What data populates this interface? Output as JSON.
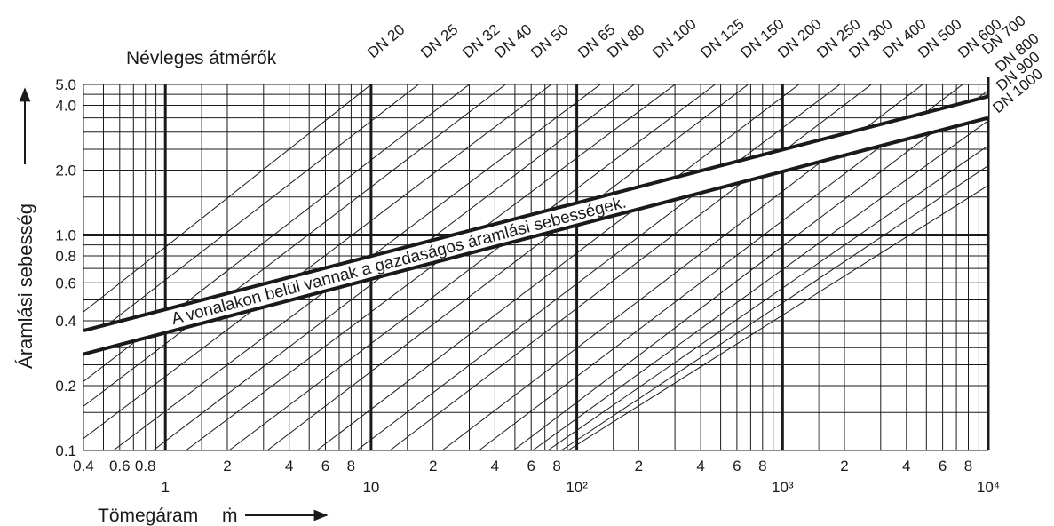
{
  "chart_data": {
    "type": "line",
    "title": "Névleges átmérők",
    "xlabel": "Tömegáram",
    "xlabel_symbol": "ṁ",
    "ylabel": "Áramlási sebesség",
    "x_scale": "log",
    "y_scale": "log",
    "xlim": [
      0.4,
      10000
    ],
    "ylim": [
      0.1,
      5.0
    ],
    "grid": true,
    "x_tick_labels": [
      {
        "value": 0.4,
        "label": "0.4"
      },
      {
        "value": 0.6,
        "label": "0.6"
      },
      {
        "value": 0.8,
        "label": "0.8"
      },
      {
        "value": 1,
        "label": "1"
      },
      {
        "value": 2,
        "label": "2"
      },
      {
        "value": 4,
        "label": "4"
      },
      {
        "value": 6,
        "label": "6"
      },
      {
        "value": 8,
        "label": "8"
      },
      {
        "value": 10,
        "label": "10"
      },
      {
        "value": 20,
        "label": "2"
      },
      {
        "value": 40,
        "label": "4"
      },
      {
        "value": 60,
        "label": "6"
      },
      {
        "value": 80,
        "label": "8"
      },
      {
        "value": 100,
        "label": "10²"
      },
      {
        "value": 200,
        "label": "2"
      },
      {
        "value": 400,
        "label": "4"
      },
      {
        "value": 600,
        "label": "6"
      },
      {
        "value": 800,
        "label": "8"
      },
      {
        "value": 1000,
        "label": "10³"
      },
      {
        "value": 2000,
        "label": "2"
      },
      {
        "value": 4000,
        "label": "4"
      },
      {
        "value": 6000,
        "label": "6"
      },
      {
        "value": 8000,
        "label": "8"
      },
      {
        "value": 10000,
        "label": "10⁴"
      }
    ],
    "y_tick_labels": [
      {
        "value": 0.1,
        "label": "0.1"
      },
      {
        "value": 0.2,
        "label": "0.2"
      },
      {
        "value": 0.4,
        "label": "0.4"
      },
      {
        "value": 0.6,
        "label": "0.6"
      },
      {
        "value": 0.8,
        "label": "0.8"
      },
      {
        "value": 1.0,
        "label": "1.0"
      },
      {
        "value": 2.0,
        "label": "2.0"
      },
      {
        "value": 4.0,
        "label": "4.0"
      },
      {
        "value": 5.0,
        "label": "5.0"
      }
    ],
    "series": [
      {
        "name": "DN 20",
        "x": [
          0.4,
          10
        ],
        "y": [
          0.44,
          5.0
        ]
      },
      {
        "name": "DN 25",
        "x": [
          0.63,
          17
        ],
        "y": [
          0.44,
          5.0
        ]
      },
      {
        "name": "DN 32",
        "x": [
          1.1,
          30
        ],
        "y": [
          0.44,
          5.0
        ]
      },
      {
        "name": "DN 40",
        "x": [
          1.6,
          45
        ],
        "y": [
          0.44,
          5.0
        ]
      },
      {
        "name": "DN 50",
        "x": [
          2.6,
          75
        ],
        "y": [
          0.44,
          5.0
        ]
      },
      {
        "name": "DN 65",
        "x": [
          4.4,
          130
        ],
        "y": [
          0.44,
          5.0
        ]
      },
      {
        "name": "DN 80",
        "x": [
          6.7,
          190
        ],
        "y": [
          0.44,
          5.0
        ]
      },
      {
        "name": "DN 100",
        "x": [
          10,
          300
        ],
        "y": [
          0.44,
          5.0
        ]
      },
      {
        "name": "DN 125",
        "x": [
          16,
          470
        ],
        "y": [
          0.44,
          5.0
        ]
      },
      {
        "name": "DN 150",
        "x": [
          24,
          680
        ],
        "y": [
          0.44,
          5.0
        ]
      },
      {
        "name": "DN 200",
        "x": [
          42,
          1200
        ],
        "y": [
          0.44,
          5.0
        ]
      },
      {
        "name": "DN 250",
        "x": [
          66,
          1900
        ],
        "y": [
          0.44,
          5.0
        ]
      },
      {
        "name": "DN 300",
        "x": [
          95,
          2700
        ],
        "y": [
          0.44,
          5.0
        ]
      },
      {
        "name": "DN 400",
        "x": [
          170,
          4800
        ],
        "y": [
          0.44,
          5.0
        ]
      },
      {
        "name": "DN 500",
        "x": [
          260,
          7500
        ],
        "y": [
          0.44,
          5.0
        ]
      },
      {
        "name": "DN 600",
        "x": [
          380,
          10000
        ],
        "y": [
          0.44,
          4.7
        ]
      },
      {
        "name": "DN 700",
        "x": [
          520,
          10000
        ],
        "y": [
          0.44,
          3.4
        ]
      },
      {
        "name": "DN 800",
        "x": [
          680,
          10000
        ],
        "y": [
          0.44,
          2.6
        ]
      },
      {
        "name": "DN 900",
        "x": [
          860,
          10000
        ],
        "y": [
          0.44,
          2.1
        ]
      },
      {
        "name": "DN 1000",
        "x": [
          1060,
          10000
        ],
        "y": [
          0.44,
          1.7
        ]
      }
    ],
    "economic_band": {
      "label": "A vonalakon belül vannak a gazdaságos áramlási sebességek.",
      "upper": {
        "x": [
          0.4,
          10000
        ],
        "y": [
          0.36,
          4.4
        ]
      },
      "lower": {
        "x": [
          0.4,
          10000
        ],
        "y": [
          0.28,
          3.5
        ]
      }
    }
  }
}
